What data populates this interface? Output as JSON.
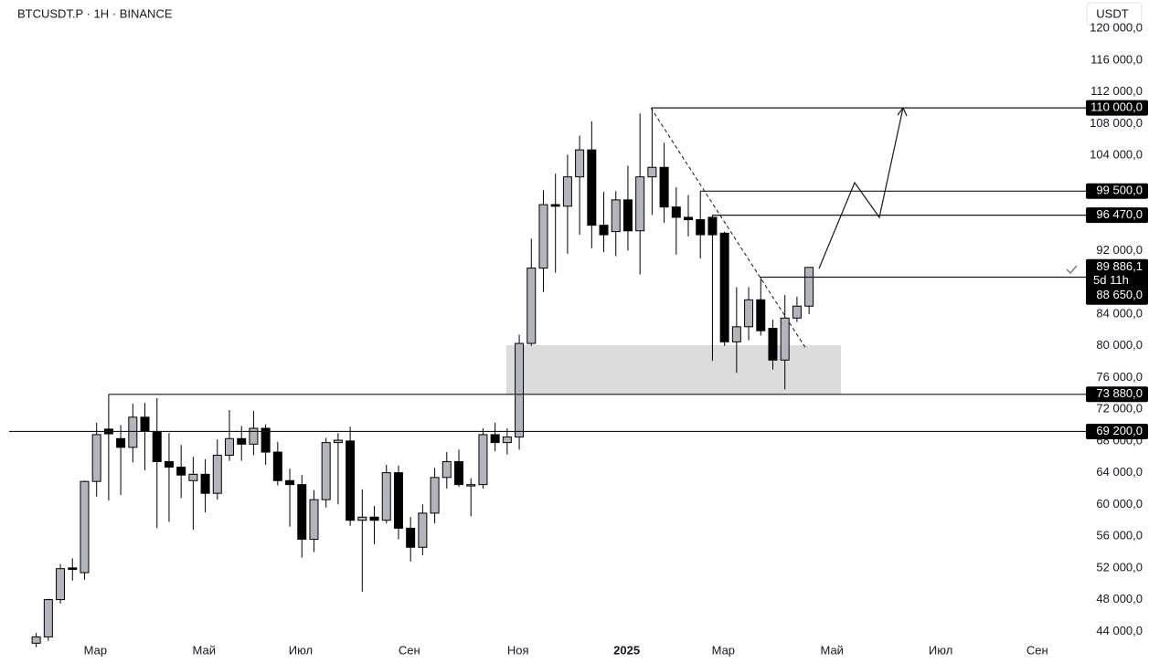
{
  "chart_data": {
    "type": "candlestick",
    "title": "BTCUSDT.P · 1H · BINANCE",
    "currency_button": "USDT",
    "up_color": "#b2b5be",
    "down_color": "#000000",
    "open": [
      42500,
      43300,
      48000,
      52000,
      51400,
      62900,
      69500,
      68300,
      67200,
      71000,
      69200,
      65400,
      64700,
      63000,
      63800,
      61400,
      66200,
      68300,
      67600,
      69600,
      66600,
      63000,
      62500,
      55600,
      60600,
      67800,
      68000,
      58000,
      58400,
      58000,
      64000,
      57000,
      54600,
      58900,
      63400,
      65400,
      62400,
      62500,
      68800,
      67800,
      68500,
      80300,
      89800,
      97800,
      97600,
      101300,
      104700,
      95200,
      94400,
      98400,
      94500,
      101300,
      102500,
      97500,
      96200,
      95900,
      96200,
      94200,
      80500,
      82400,
      85800,
      82200,
      78200,
      83500,
      85000
    ],
    "high": [
      43800,
      48100,
      52500,
      53200,
      63000,
      70300,
      73880,
      70000,
      72700,
      72800,
      73400,
      69000,
      67500,
      66000,
      65700,
      68200,
      71900,
      69900,
      71800,
      70100,
      67900,
      64500,
      63700,
      61800,
      68400,
      69000,
      69800,
      61900,
      59800,
      65000,
      64900,
      58400,
      60000,
      64600,
      66600,
      66900,
      63300,
      69600,
      70300,
      69600,
      81400,
      93500,
      99600,
      101700,
      104100,
      106500,
      108300,
      99400,
      99500,
      102700,
      109300,
      110000,
      105600,
      100000,
      99000,
      99500,
      96500,
      94400,
      87400,
      87400,
      88700,
      83300,
      86400,
      86200,
      89900
    ],
    "low": [
      42000,
      42800,
      47500,
      50400,
      50500,
      61000,
      60500,
      61200,
      65300,
      64300,
      57000,
      57800,
      60800,
      56800,
      59000,
      60600,
      65500,
      65500,
      66200,
      65000,
      62400,
      57200,
      53300,
      54000,
      59600,
      60000,
      57300,
      49000,
      55000,
      57600,
      55600,
      52800,
      53600,
      57600,
      62000,
      62200,
      58500,
      62000,
      66700,
      66300,
      66900,
      80000,
      86800,
      89200,
      91600,
      94000,
      92300,
      91800,
      91300,
      92000,
      89000,
      96500,
      95500,
      91500,
      93800,
      91000,
      78100,
      80000,
      76600,
      80700,
      81300,
      77000,
      74500,
      83000,
      84000
    ],
    "close": [
      43300,
      48000,
      51900,
      51800,
      62900,
      68800,
      68900,
      67200,
      71000,
      69200,
      65400,
      64700,
      63700,
      63800,
      61400,
      66200,
      68300,
      67600,
      69600,
      66600,
      63000,
      62500,
      55600,
      60600,
      67800,
      68100,
      58000,
      58400,
      58000,
      64000,
      57000,
      54600,
      58900,
      63400,
      65400,
      62500,
      62500,
      68800,
      67800,
      68500,
      80300,
      89800,
      97800,
      97600,
      101300,
      104700,
      95200,
      94000,
      98400,
      94500,
      101300,
      102500,
      97500,
      96200,
      95900,
      94000,
      94000,
      80500,
      82400,
      85800,
      81900,
      78200,
      83500,
      85000,
      89886.1
    ],
    "xlim": [
      -3,
      86.7
    ],
    "ylim": [
      43000,
      123600
    ],
    "xticks": [
      {
        "value": 4.9,
        "label": "Мар"
      },
      {
        "value": 13.9,
        "label": "Май"
      },
      {
        "value": 21.9,
        "label": "Июл"
      },
      {
        "value": 30.9,
        "label": "Сен"
      },
      {
        "value": 39.9,
        "label": "Ноя"
      },
      {
        "value": 48.9,
        "label": "2025",
        "bold": true
      },
      {
        "value": 56.9,
        "label": "Мар"
      },
      {
        "value": 65.9,
        "label": "Май"
      },
      {
        "value": 74.9,
        "label": "Июл"
      },
      {
        "value": 82.9,
        "label": "Сен"
      }
    ],
    "yticks": [
      {
        "value": 44000,
        "label": "44 000,0"
      },
      {
        "value": 48000,
        "label": "48 000,0"
      },
      {
        "value": 52000,
        "label": "52 000,0"
      },
      {
        "value": 56000,
        "label": "56 000,0"
      },
      {
        "value": 60000,
        "label": "60 000,0"
      },
      {
        "value": 64000,
        "label": "64 000,0"
      },
      {
        "value": 68000,
        "label": "68 000,0"
      },
      {
        "value": 72000,
        "label": "72 000,0"
      },
      {
        "value": 76000,
        "label": "76 000,0"
      },
      {
        "value": 80000,
        "label": "80 000,0"
      },
      {
        "value": 84000,
        "label": "84 000,0"
      },
      {
        "value": 92000,
        "label": "92 000,0"
      },
      {
        "value": 104000,
        "label": "104 000,0"
      },
      {
        "value": 108000,
        "label": "108 000,0"
      },
      {
        "value": 112000,
        "label": "112 000,0"
      },
      {
        "value": 116000,
        "label": "116 000,0"
      },
      {
        "value": 120000,
        "label": "120 000,0"
      }
    ],
    "levels": [
      {
        "value": 110000,
        "label": "110 000,0",
        "from": 51
      },
      {
        "value": 99500,
        "label": "99 500,0",
        "from": 55
      },
      {
        "value": 96470,
        "label": "96 470,0",
        "from": 56
      },
      {
        "value": 73880,
        "label": "73 880,0",
        "from": 6
      },
      {
        "value": 69200,
        "label": "69 200,0",
        "from": null
      }
    ],
    "last_price": {
      "value": 89886.1,
      "label": "89 886,1"
    },
    "countdown": "5d 11h",
    "entry_level": {
      "value": 88650,
      "label": "88 650,0",
      "from": 60
    }
  }
}
